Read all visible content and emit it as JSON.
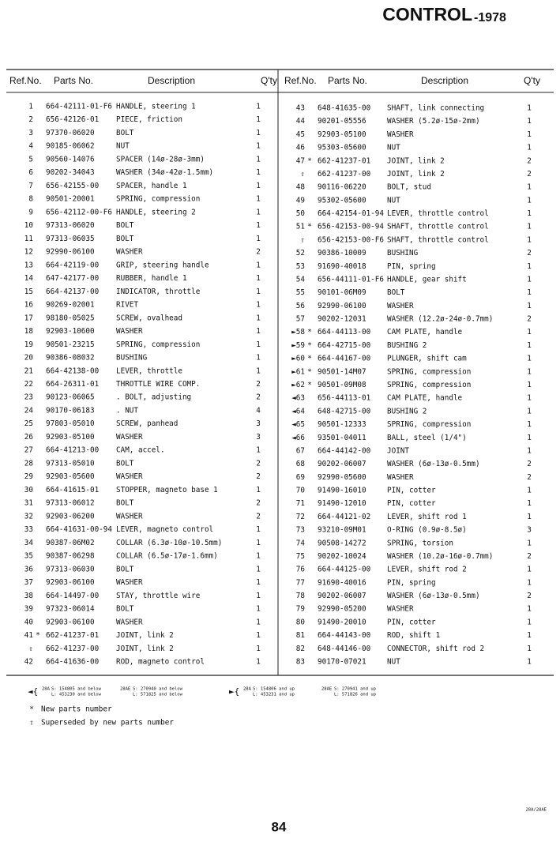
{
  "header": {
    "title": "CONTROL",
    "year": "-1978"
  },
  "table": {
    "columns": [
      "Ref.No.",
      "Parts No.",
      "Description",
      "Q'ty"
    ],
    "left": [
      {
        "ref": "1",
        "part": "664-42111-01-F6",
        "desc": "HANDLE, steering 1",
        "qty": "1"
      },
      {
        "ref": "2",
        "part": "656-42126-01",
        "desc": "PIECE, friction",
        "qty": "1"
      },
      {
        "ref": "3",
        "part": "97370-06020",
        "desc": "BOLT",
        "qty": "1"
      },
      {
        "ref": "4",
        "part": "90185-06062",
        "desc": "NUT",
        "qty": "1"
      },
      {
        "ref": "5",
        "part": "90560-14076",
        "desc": "SPACER (14ø-28ø-3mm)",
        "qty": "1"
      },
      {
        "ref": "6",
        "part": "90202-34043",
        "desc": "WASHER (34ø-42ø-1.5mm)",
        "qty": "1"
      },
      {
        "ref": "7",
        "part": "656-42155-00",
        "desc": "SPACER, handle 1",
        "qty": "1"
      },
      {
        "ref": "8",
        "part": "90501-20001",
        "desc": "SPRING, compression",
        "qty": "1"
      },
      {
        "ref": "9",
        "part": "656-42112-00-F6",
        "desc": "HANDLE, steering 2",
        "qty": "1"
      },
      {
        "ref": "10",
        "part": "97313-06020",
        "desc": "BOLT",
        "qty": "1"
      },
      {
        "ref": "11",
        "part": "97313-06035",
        "desc": "BOLT",
        "qty": "1"
      },
      {
        "ref": "12",
        "part": "92990-06100",
        "desc": "WASHER",
        "qty": "2"
      },
      {
        "ref": "13",
        "part": "664-42119-00",
        "desc": "GRIP, steering handle",
        "qty": "1"
      },
      {
        "ref": "14",
        "part": "647-42177-00",
        "desc": "RUBBER, handle 1",
        "qty": "1"
      },
      {
        "ref": "15",
        "part": "664-42137-00",
        "desc": "INDICATOR, throttle",
        "qty": "1"
      },
      {
        "ref": "16",
        "part": "90269-02001",
        "desc": "RIVET",
        "qty": "1"
      },
      {
        "ref": "17",
        "part": "98180-05025",
        "desc": "SCREW, ovalhead",
        "qty": "1"
      },
      {
        "ref": "18",
        "part": "92903-10600",
        "desc": "WASHER",
        "qty": "1"
      },
      {
        "ref": "19",
        "part": "90501-23215",
        "desc": "SPRING, compression",
        "qty": "1"
      },
      {
        "ref": "20",
        "part": "90386-08032",
        "desc": "BUSHING",
        "qty": "1"
      },
      {
        "ref": "21",
        "part": "664-42138-00",
        "desc": "LEVER, throttle",
        "qty": "1"
      },
      {
        "ref": "22",
        "part": "664-26311-01",
        "desc": "THROTTLE WIRE COMP.",
        "qty": "2"
      },
      {
        "ref": "23",
        "part": "90123-06065",
        "desc": ". BOLT, adjusting",
        "qty": "2"
      },
      {
        "ref": "24",
        "part": "90170-06183",
        "desc": ". NUT",
        "qty": "4"
      },
      {
        "ref": "25",
        "part": "97803-05010",
        "desc": "SCREW, panhead",
        "qty": "3"
      },
      {
        "ref": "26",
        "part": "92903-05100",
        "desc": "WASHER",
        "qty": "3"
      },
      {
        "ref": "27",
        "part": "664-41213-00",
        "desc": "CAM, accel.",
        "qty": "1"
      },
      {
        "ref": "28",
        "part": "97313-05010",
        "desc": "BOLT",
        "qty": "2"
      },
      {
        "ref": "29",
        "part": "92903-05600",
        "desc": "WASHER",
        "qty": "2"
      },
      {
        "ref": "30",
        "part": "664-41615-01",
        "desc": "STOPPER, magneto base 1",
        "qty": "1"
      },
      {
        "ref": "31",
        "part": "97313-06012",
        "desc": "BOLT",
        "qty": "2"
      },
      {
        "ref": "32",
        "part": "92903-06200",
        "desc": "WASHER",
        "qty": "2"
      },
      {
        "ref": "33",
        "part": "664-41631-00-94",
        "desc": "LEVER, magneto control",
        "qty": "1"
      },
      {
        "ref": "34",
        "part": "90387-06M02",
        "desc": "COLLAR (6.3ø-10ø-10.5mm)",
        "qty": "1"
      },
      {
        "ref": "35",
        "part": "90387-06298",
        "desc": "COLLAR (6.5ø-17ø-1.6mm)",
        "qty": "1"
      },
      {
        "ref": "36",
        "part": "97313-06030",
        "desc": "BOLT",
        "qty": "1"
      },
      {
        "ref": "37",
        "part": "92903-06100",
        "desc": "WASHER",
        "qty": "1"
      },
      {
        "ref": "38",
        "part": "664-14497-00",
        "desc": "STAY, throttle wire",
        "qty": "1"
      },
      {
        "ref": "39",
        "part": "97323-06014",
        "desc": "BOLT",
        "qty": "1"
      },
      {
        "ref": "40",
        "part": "92903-06100",
        "desc": "WASHER",
        "qty": "1"
      },
      {
        "ref": "41",
        "mark": "*",
        "part": "662-41237-01",
        "desc": "JOINT, link 2",
        "qty": "1"
      },
      {
        "ref": "⇧",
        "part": "662-41237-00",
        "desc": "JOINT, link 2",
        "qty": "1"
      },
      {
        "ref": "42",
        "part": "664-41636-00",
        "desc": "ROD, magneto control",
        "qty": "1"
      }
    ],
    "right": [
      {
        "ref": "43",
        "part": "648-41635-00",
        "desc": "SHAFT, link connecting",
        "qty": "1"
      },
      {
        "ref": "44",
        "part": "90201-05556",
        "desc": "WASHER (5.2ø-15ø-2mm)",
        "qty": "1"
      },
      {
        "ref": "45",
        "part": "92903-05100",
        "desc": "WASHER",
        "qty": "1"
      },
      {
        "ref": "46",
        "part": "95303-05600",
        "desc": "NUT",
        "qty": "1"
      },
      {
        "ref": "47",
        "mark": "*",
        "part": "662-41237-01",
        "desc": "JOINT, link 2",
        "qty": "2"
      },
      {
        "ref": "⇧",
        "part": "662-41237-00",
        "desc": "JOINT, link 2",
        "qty": "2"
      },
      {
        "ref": "48",
        "part": "90116-06220",
        "desc": "BOLT, stud",
        "qty": "1"
      },
      {
        "ref": "49",
        "part": "95302-05600",
        "desc": "NUT",
        "qty": "1"
      },
      {
        "ref": "50",
        "part": "664-42154-01-94",
        "desc": "LEVER, throttle control",
        "qty": "1"
      },
      {
        "ref": "51",
        "mark": "*",
        "part": "656-42153-00-94",
        "desc": "SHAFT, throttle control",
        "qty": "1"
      },
      {
        "ref": "⇧",
        "part": "656-42153-00-F6",
        "desc": "SHAFT, throttle control",
        "qty": "1"
      },
      {
        "ref": "52",
        "part": "90386-10009",
        "desc": "BUSHING",
        "qty": "2"
      },
      {
        "ref": "53",
        "part": "91690-40018",
        "desc": "PIN, spring",
        "qty": "1"
      },
      {
        "ref": "54",
        "part": "656-44111-01-F6",
        "desc": "HANDLE, gear shift",
        "qty": "1"
      },
      {
        "ref": "55",
        "part": "90101-06M09",
        "desc": "BOLT",
        "qty": "1"
      },
      {
        "ref": "56",
        "part": "92990-06100",
        "desc": "WASHER",
        "qty": "1"
      },
      {
        "ref": "57",
        "part": "90202-12031",
        "desc": "WASHER (12.2ø-24ø-0.7mm)",
        "qty": "2"
      },
      {
        "ref": "►58",
        "mark": "*",
        "part": "664-44113-00",
        "desc": "CAM PLATE, handle",
        "qty": "1"
      },
      {
        "ref": "►59",
        "mark": "*",
        "part": "664-42715-00",
        "desc": "BUSHING 2",
        "qty": "1"
      },
      {
        "ref": "►60",
        "mark": "*",
        "part": "664-44167-00",
        "desc": "PLUNGER, shift cam",
        "qty": "1"
      },
      {
        "ref": "►61",
        "mark": "*",
        "part": "90501-14M07",
        "desc": "SPRING, compression",
        "qty": "1"
      },
      {
        "ref": "►62",
        "mark": "*",
        "part": "90501-09M08",
        "desc": "SPRING, compression",
        "qty": "1"
      },
      {
        "ref": "◄63",
        "part": "656-44113-01",
        "desc": "CAM PLATE, handle",
        "qty": "1"
      },
      {
        "ref": "◄64",
        "part": "648-42715-00",
        "desc": "BUSHING 2",
        "qty": "1"
      },
      {
        "ref": "◄65",
        "part": "90501-12333",
        "desc": "SPRING, compression",
        "qty": "1"
      },
      {
        "ref": "◄66",
        "part": "93501-04011",
        "desc": "BALL, steel (1/4\")",
        "qty": "1"
      },
      {
        "ref": "67",
        "part": "664-44142-00",
        "desc": "JOINT",
        "qty": "1"
      },
      {
        "ref": "68",
        "part": "90202-06007",
        "desc": "WASHER (6ø-13ø-0.5mm)",
        "qty": "2"
      },
      {
        "ref": "69",
        "part": "92990-05600",
        "desc": "WASHER",
        "qty": "2"
      },
      {
        "ref": "70",
        "part": "91490-16010",
        "desc": "PIN, cotter",
        "qty": "1"
      },
      {
        "ref": "71",
        "part": "91490-12010",
        "desc": "PIN, cotter",
        "qty": "1"
      },
      {
        "ref": "72",
        "part": "664-44121-02",
        "desc": "LEVER, shift rod 1",
        "qty": "1"
      },
      {
        "ref": "73",
        "part": "93210-09M01",
        "desc": "O-RING (0.9ø-8.5ø)",
        "qty": "3"
      },
      {
        "ref": "74",
        "part": "90508-14272",
        "desc": "SPRING, torsion",
        "qty": "1"
      },
      {
        "ref": "75",
        "part": "90202-10024",
        "desc": "WASHER (10.2ø-16ø-0.7mm)",
        "qty": "2"
      },
      {
        "ref": "76",
        "part": "664-44125-00",
        "desc": "LEVER, shift rod 2",
        "qty": "1"
      },
      {
        "ref": "77",
        "part": "91690-40016",
        "desc": "PIN, spring",
        "qty": "1"
      },
      {
        "ref": "78",
        "part": "90202-06007",
        "desc": "WASHER (6ø-13ø-0.5mm)",
        "qty": "2"
      },
      {
        "ref": "79",
        "part": "92990-05200",
        "desc": "WASHER",
        "qty": "1"
      },
      {
        "ref": "80",
        "part": "91490-20010",
        "desc": "PIN, cotter",
        "qty": "1"
      },
      {
        "ref": "81",
        "part": "664-44143-00",
        "desc": "ROD, shift 1",
        "qty": "1"
      },
      {
        "ref": "82",
        "part": "648-44146-00",
        "desc": "CONNECTOR, shift rod 2",
        "qty": "1"
      },
      {
        "ref": "83",
        "part": "90170-07021",
        "desc": "NUT",
        "qty": "1"
      }
    ]
  },
  "legend": [
    {
      "symbol": "◄{",
      "m1": "28A",
      "s1": "S: 154805 and below",
      "l1": "L: 453230 and below",
      "m2": "28AE",
      "s2": "S: 270940 and below",
      "l2": "L: 571825 and below"
    },
    {
      "symbol": "►{",
      "m1": "28A",
      "s1": "S: 154806 and up",
      "l1": "L: 453231 and up",
      "m2": "28AE",
      "s2": "S: 270941 and up",
      "l2": "L: 571826 and up"
    }
  ],
  "notes": [
    {
      "symbol": "*",
      "text": "New parts number"
    },
    {
      "symbol": "⇧",
      "text": "Superseded by new parts number"
    }
  ],
  "footer": {
    "model": "28A/28AE",
    "page": "84"
  }
}
